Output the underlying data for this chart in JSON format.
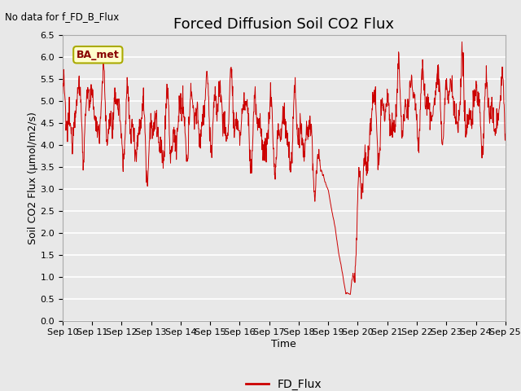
{
  "title": "Forced Diffusion Soil CO2 Flux",
  "top_left_text": "No data for f_FD_B_Flux",
  "xlabel": "Time",
  "ylabel": "Soil CO2 Flux (μmol/m2/s)",
  "ylim": [
    0.0,
    6.5
  ],
  "yticks": [
    0.0,
    0.5,
    1.0,
    1.5,
    2.0,
    2.5,
    3.0,
    3.5,
    4.0,
    4.5,
    5.0,
    5.5,
    6.0,
    6.5
  ],
  "legend_label": "FD_Flux",
  "line_color": "#cc0000",
  "legend_line_color": "#cc0000",
  "box_label": "BA_met",
  "box_facecolor": "#ffffcc",
  "box_edgecolor": "#aaaa00",
  "background_color": "#e8e8e8",
  "plot_bg_color": "#e8e8e8",
  "grid_color": "#ffffff",
  "title_fontsize": 13,
  "axis_label_fontsize": 9,
  "tick_label_fontsize": 8,
  "x_tick_labels": [
    "Sep 10",
    "Sep 11",
    "Sep 12",
    "Sep 13",
    "Sep 14",
    "Sep 15",
    "Sep 16",
    "Sep 17",
    "Sep 18",
    "Sep 19",
    "Sep 20",
    "Sep 21",
    "Sep 22",
    "Sep 23",
    "Sep 24",
    "Sep 25"
  ]
}
